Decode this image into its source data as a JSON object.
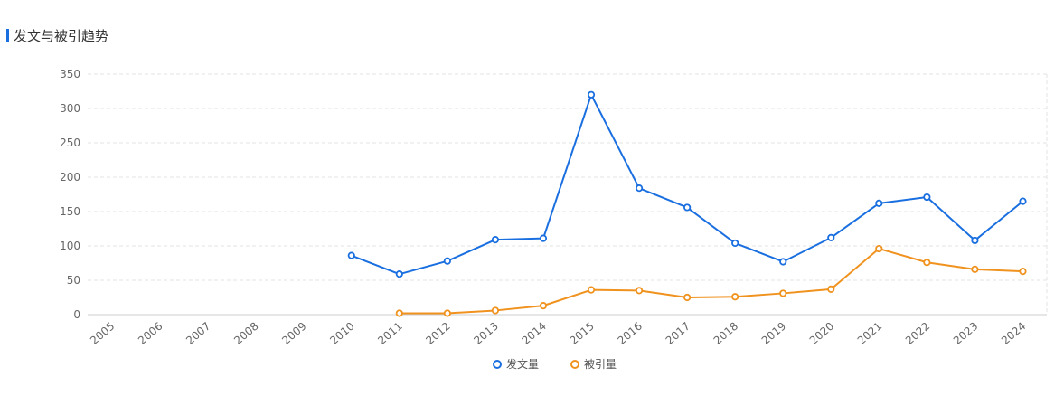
{
  "header": {
    "title": "发文与被引趋势"
  },
  "colors": {
    "accent": "#1a6fe0",
    "series1": "#1a6fe0",
    "series2": "#f0921e",
    "grid": "#e3e3e3",
    "axis": "#cccccc"
  },
  "chart_data": {
    "type": "line",
    "categories": [
      "2005",
      "2006",
      "2007",
      "2008",
      "2009",
      "2010",
      "2011",
      "2012",
      "2013",
      "2014",
      "2015",
      "2016",
      "2017",
      "2018",
      "2019",
      "2020",
      "2021",
      "2022",
      "2023",
      "2024"
    ],
    "ylim": [
      0,
      350
    ],
    "yticks": [
      "0",
      "50",
      "100",
      "150",
      "200",
      "250",
      "300",
      "350"
    ],
    "grid": true,
    "legend_position": "bottom-center",
    "series": [
      {
        "name": "发文量",
        "color": "#1a6fe0",
        "values": [
          null,
          null,
          null,
          null,
          null,
          86,
          59,
          78,
          109,
          111,
          320,
          184,
          156,
          104,
          77,
          112,
          162,
          171,
          108,
          165
        ]
      },
      {
        "name": "被引量",
        "color": "#f0921e",
        "values": [
          null,
          null,
          null,
          null,
          null,
          null,
          2,
          2,
          6,
          13,
          36,
          35,
          25,
          26,
          31,
          37,
          96,
          76,
          66,
          63
        ]
      }
    ]
  }
}
